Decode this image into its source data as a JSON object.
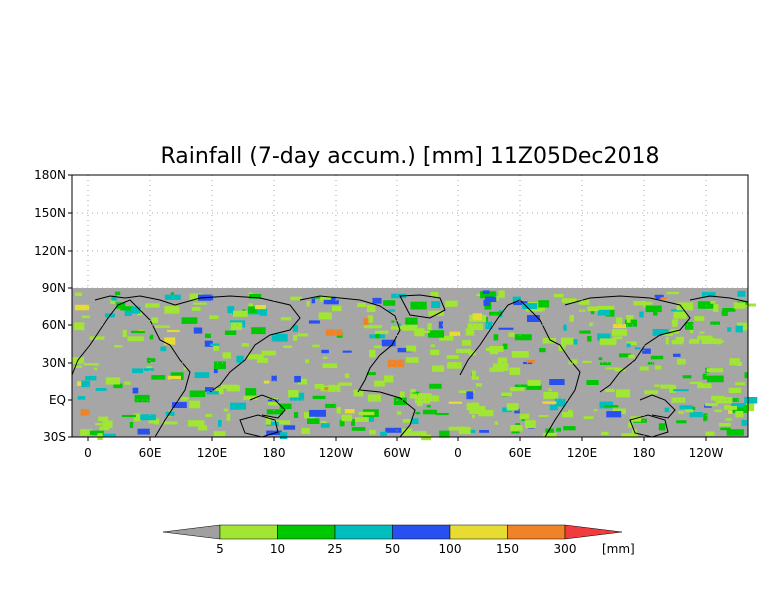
{
  "title": "Rainfall (7-day accum.) [mm] 11Z05Dec2018",
  "lat_labels": [
    "180N",
    "150N",
    "120N",
    "90N",
    "60N",
    "30N",
    "EQ",
    "30S"
  ],
  "lon_labels": [
    "0",
    "60E",
    "120E",
    "180",
    "120W",
    "60W",
    "0",
    "60E",
    "120E",
    "180",
    "120W"
  ],
  "colorbar": {
    "ticks": [
      "5",
      "10",
      "25",
      "50",
      "100",
      "150",
      "300"
    ],
    "unit": "[mm]",
    "colors": [
      "#a0a0a0",
      "#a0e632",
      "#00c800",
      "#00bebe",
      "#2850f0",
      "#e6dc32",
      "#f08228",
      "#f03c3c"
    ]
  },
  "colors": {
    "land_no_data": "#a6a6a6",
    "outline": "#000000",
    "grid": "#aaaaaa"
  }
}
